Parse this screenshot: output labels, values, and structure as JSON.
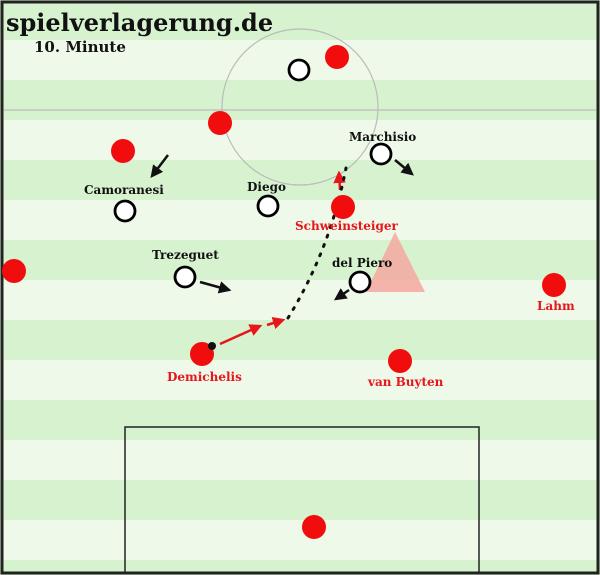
{
  "site_title": "spielverlagerung.de",
  "minute_label": "10. Minute",
  "colors": {
    "stripe_light": "#eef9ea",
    "stripe_dark": "#d7f2cf",
    "red_team": "#f10d0d",
    "white_team_fill": "#ffffff",
    "white_team_stroke": "#000000",
    "red_arrow": "#e8151b",
    "zone_highlight": "#f4a8a0"
  },
  "players": {
    "marchisio": "Marchisio",
    "camoranesi": "Camoranesi",
    "diego": "Diego",
    "trezeguet": "Trezeguet",
    "del_piero": "del Piero",
    "schweinsteiger": "Schweinsteiger",
    "demichelis": "Demichelis",
    "van_buyten": "van Buyten",
    "lahm": "Lahm"
  }
}
